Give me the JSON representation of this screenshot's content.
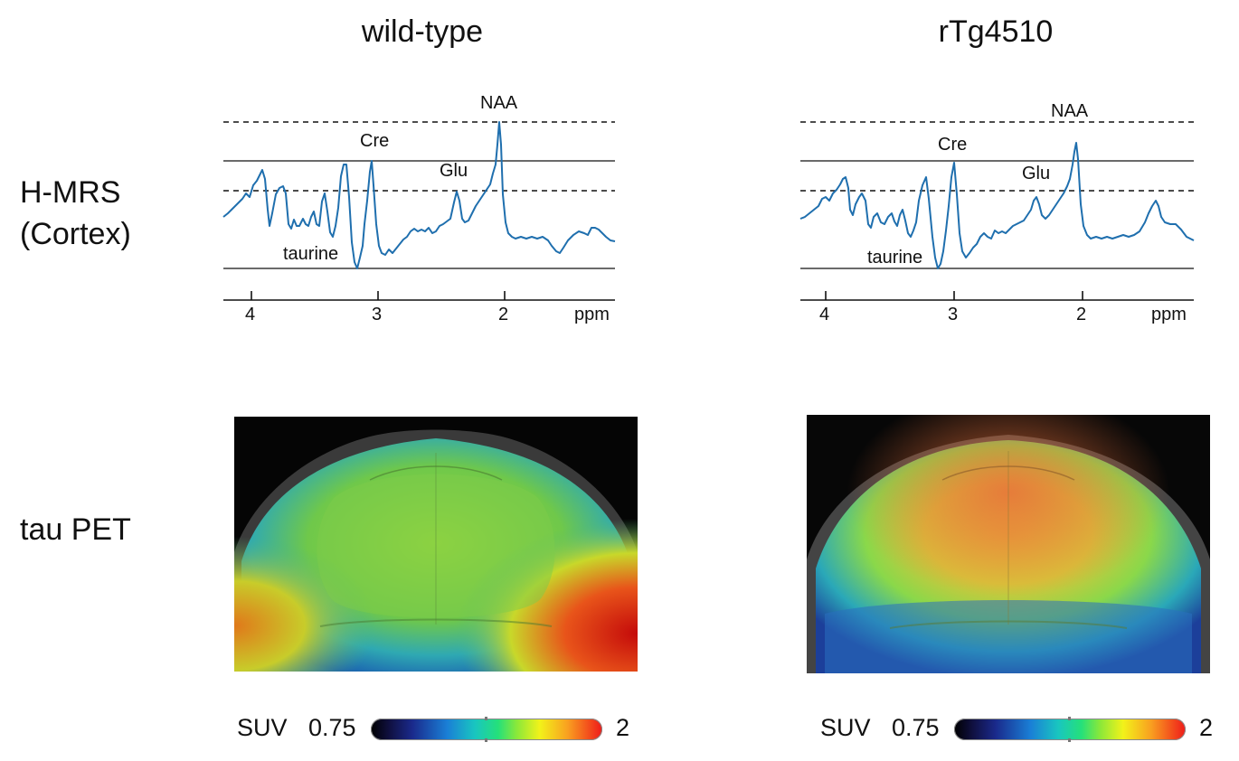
{
  "columns": [
    {
      "title": "wild-type"
    },
    {
      "title": "rTg4510"
    }
  ],
  "rows": [
    {
      "label_line1": "H-MRS",
      "label_line2": "(Cortex)"
    },
    {
      "label_line1": "tau PET"
    }
  ],
  "spectra": [
    {
      "peaks": {
        "naa": "NAA",
        "cre": "Cre",
        "glu": "Glu",
        "taurine": "taurine"
      },
      "x_axis": {
        "ticks": [
          "4",
          "3",
          "2"
        ],
        "unit": "ppm"
      }
    },
    {
      "peaks": {
        "naa": "NAA",
        "cre": "Cre",
        "glu": "Glu",
        "taurine": "taurine"
      },
      "x_axis": {
        "ticks": [
          "4",
          "3",
          "2"
        ],
        "unit": "ppm"
      }
    }
  ],
  "colorbars": [
    {
      "label": "SUV",
      "min": "0.75",
      "max": "2"
    },
    {
      "label": "SUV",
      "min": "0.75",
      "max": "2"
    }
  ],
  "colors": {
    "spectrum_line": "#1f6fae",
    "axis": "#111111",
    "background": "#ffffff"
  }
}
